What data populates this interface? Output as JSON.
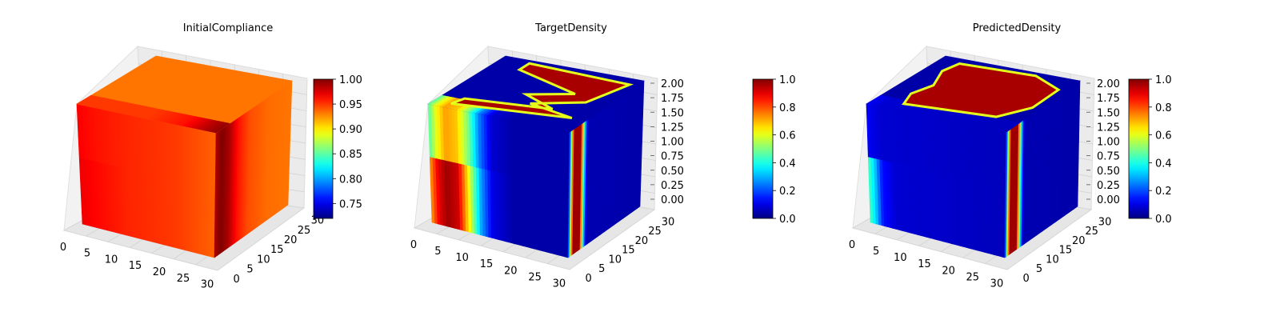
{
  "figure": {
    "background": "#ffffff",
    "colormap": "jet"
  },
  "chart_data": [
    {
      "type": "heatmap",
      "subtype": "3d-voxel",
      "title": "InitialCompliance",
      "xlabel": "",
      "ylabel": "",
      "zlabel": "",
      "x_ticks": [
        "0",
        "5",
        "10",
        "15",
        "20",
        "25",
        "30"
      ],
      "y_ticks": [
        "0",
        "5",
        "10",
        "15",
        "20",
        "25",
        "30"
      ],
      "z_ticks": [],
      "xlim": [
        0,
        32
      ],
      "ylim": [
        0,
        32
      ],
      "zlim": [
        0,
        2
      ],
      "grid": true,
      "colorbar": {
        "range": [
          0.72,
          1.0
        ],
        "ticks": [
          "0.75",
          "0.80",
          "0.85",
          "0.90",
          "0.95",
          "1.00"
        ],
        "tick_values": [
          0.75,
          0.8,
          0.85,
          0.9,
          0.95,
          1.0
        ]
      },
      "faces": {
        "front_x_profile": [
          [
            0,
            0.88
          ],
          [
            0.12,
            0.86
          ],
          [
            0.35,
            0.84
          ],
          [
            0.7,
            0.82
          ],
          [
            0.85,
            0.8
          ],
          [
            1.0,
            0.78
          ]
        ],
        "front_lower_x_profile": [
          [
            0,
            0.89
          ],
          [
            0.12,
            0.87
          ],
          [
            0.35,
            0.84
          ],
          [
            0.7,
            0.82
          ],
          [
            0.85,
            0.8
          ],
          [
            1.0,
            0.78
          ]
        ],
        "right_y_profile": [
          [
            0,
            0.95
          ],
          [
            0.08,
            1.0
          ],
          [
            0.18,
            0.96
          ],
          [
            0.3,
            0.86
          ],
          [
            0.45,
            0.8
          ],
          [
            0.7,
            0.77
          ],
          [
            1.0,
            0.76
          ]
        ],
        "top_front_edge_x_profile": [
          [
            0,
            0.82
          ],
          [
            0.5,
            0.82
          ],
          [
            0.75,
            0.86
          ],
          [
            0.92,
            0.95
          ],
          [
            1.0,
            0.98
          ]
        ],
        "top_back_value": 0.76
      }
    },
    {
      "type": "heatmap",
      "subtype": "3d-voxel",
      "title": "TargetDensity",
      "xlabel": "",
      "ylabel": "",
      "zlabel": "",
      "x_ticks": [
        "0",
        "5",
        "10",
        "15",
        "20",
        "25",
        "30"
      ],
      "y_ticks": [
        "0",
        "5",
        "10",
        "15",
        "20",
        "25",
        "30"
      ],
      "z_ticks": [
        "0.00",
        "0.25",
        "0.50",
        "0.75",
        "1.00",
        "1.25",
        "1.50",
        "1.75",
        "2.00"
      ],
      "xlim": [
        0,
        32
      ],
      "ylim": [
        0,
        32
      ],
      "zlim": [
        0,
        2
      ],
      "grid": true,
      "colorbar": {
        "range": [
          0.0,
          1.0
        ],
        "ticks": [
          "0.0",
          "0.2",
          "0.4",
          "0.6",
          "0.8",
          "1.0"
        ],
        "tick_values": [
          0.0,
          0.2,
          0.4,
          0.6,
          0.8,
          1.0
        ]
      },
      "faces": {
        "front_x_profile": [
          [
            0,
            0.45
          ],
          [
            0.06,
            0.62
          ],
          [
            0.12,
            0.72
          ],
          [
            0.2,
            0.68
          ],
          [
            0.28,
            0.5
          ],
          [
            0.36,
            0.25
          ],
          [
            0.45,
            0.08
          ],
          [
            0.6,
            0.04
          ],
          [
            1.0,
            0.04
          ]
        ],
        "front_lower_x_profile": [
          [
            0,
            0.72
          ],
          [
            0.06,
            0.9
          ],
          [
            0.12,
            0.97
          ],
          [
            0.2,
            0.92
          ],
          [
            0.28,
            0.62
          ],
          [
            0.36,
            0.3
          ],
          [
            0.45,
            0.1
          ],
          [
            0.6,
            0.04
          ],
          [
            1.0,
            0.04
          ]
        ],
        "right_y_profile": [
          [
            0,
            0.05
          ],
          [
            0.03,
            0.5
          ],
          [
            0.07,
            0.97
          ],
          [
            0.16,
            0.97
          ],
          [
            0.2,
            0.45
          ],
          [
            0.25,
            0.05
          ],
          [
            1.0,
            0.04
          ]
        ],
        "top_back_value": 0.04
      }
    },
    {
      "type": "heatmap",
      "subtype": "3d-voxel",
      "title": "PredictedDensity",
      "xlabel": "",
      "ylabel": "",
      "zlabel": "",
      "x_ticks": [
        "0",
        "5",
        "10",
        "15",
        "20",
        "25",
        "30"
      ],
      "y_ticks": [
        "0",
        "5",
        "10",
        "15",
        "20",
        "25",
        "30"
      ],
      "z_ticks": [
        "0.00",
        "0.25",
        "0.50",
        "0.75",
        "1.00",
        "1.25",
        "1.50",
        "1.75",
        "2.00"
      ],
      "xlim": [
        0,
        32
      ],
      "ylim": [
        0,
        32
      ],
      "zlim": [
        0,
        2
      ],
      "grid": true,
      "colorbar": {
        "range": [
          0.0,
          1.0
        ],
        "ticks": [
          "0.0",
          "0.2",
          "0.4",
          "0.6",
          "0.8",
          "1.0"
        ],
        "tick_values": [
          0.0,
          0.2,
          0.4,
          0.6,
          0.8,
          1.0
        ]
      },
      "faces": {
        "front_x_profile": [
          [
            0,
            0.12
          ],
          [
            0.04,
            0.1
          ],
          [
            0.1,
            0.08
          ],
          [
            1.0,
            0.06
          ]
        ],
        "front_lower_x_profile": [
          [
            0,
            0.45
          ],
          [
            0.05,
            0.32
          ],
          [
            0.1,
            0.14
          ],
          [
            0.2,
            0.08
          ],
          [
            1.0,
            0.06
          ]
        ],
        "right_y_profile": [
          [
            0,
            0.05
          ],
          [
            0.03,
            0.5
          ],
          [
            0.07,
            0.97
          ],
          [
            0.16,
            0.97
          ],
          [
            0.2,
            0.45
          ],
          [
            0.25,
            0.05
          ],
          [
            1.0,
            0.04
          ]
        ],
        "top_back_value": 0.04
      }
    }
  ]
}
